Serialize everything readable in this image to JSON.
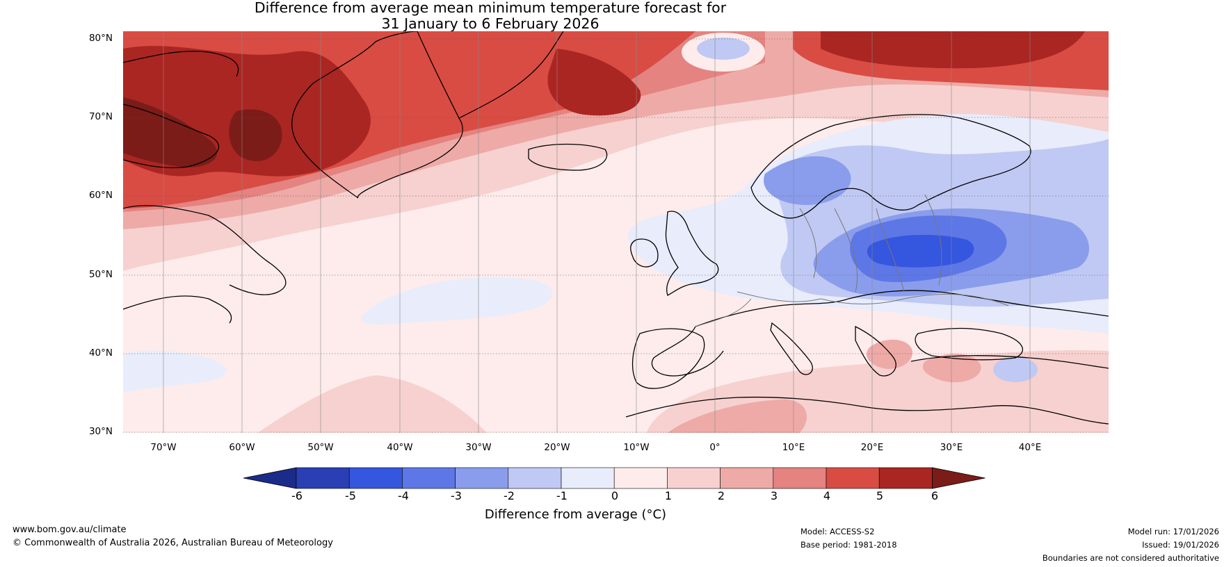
{
  "title": {
    "line1": "Difference from average mean minimum temperature forecast for",
    "line2": "31 January to 6 February 2026"
  },
  "map": {
    "region": "North Atlantic and Europe",
    "lat_labels": [
      "80°N",
      "70°N",
      "60°N",
      "50°N",
      "40°N",
      "30°N"
    ],
    "lon_labels": [
      "70°W",
      "60°W",
      "50°W",
      "40°W",
      "30°W",
      "20°W",
      "10°W",
      "0°",
      "10°E",
      "20°E",
      "30°E",
      "40°E"
    ]
  },
  "colorbar": {
    "ticks": [
      "-6",
      "-5",
      "-4",
      "-3",
      "-2",
      "-1",
      "0",
      "1",
      "2",
      "3",
      "4",
      "5",
      "6"
    ],
    "colors": [
      "#1a2b8a",
      "#2a3fb3",
      "#3556de",
      "#5e77e6",
      "#8a9dec",
      "#bfc9f3",
      "#e8ecfb",
      "#fdeceb",
      "#f6d1cf",
      "#eeaaa7",
      "#e48380",
      "#d94c43",
      "#aa2622",
      "#7b1c18"
    ],
    "label": "Difference from average (°C)"
  },
  "footer": {
    "website": "www.bom.gov.au/climate",
    "copyright": "© Commonwealth of Australia 2026, Australian Bureau of Meteorology",
    "model": "Model: ACCESS-S2",
    "base_period": "Base period: 1981-2018",
    "model_run": "Model run: 17/01/2026",
    "issued": "Issued: 19/01/2026",
    "disclaimer": "Boundaries are not considered authoritative"
  }
}
